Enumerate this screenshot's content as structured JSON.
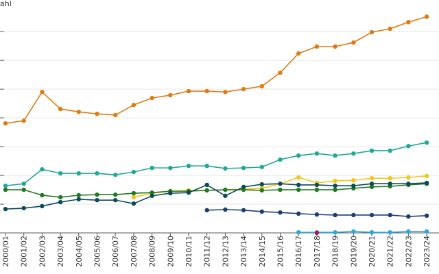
{
  "chart_data": {
    "type": "line",
    "title": "ahl",
    "categories": [
      "2000/01",
      "2001/02",
      "2002/03",
      "2003/04",
      "2004/05",
      "2005/06",
      "2006/07",
      "2007/08",
      "2008/09",
      "2009/10",
      "2010/11",
      "2011/12",
      "2012/13",
      "2013/14",
      "2014/15",
      "2015/16",
      "2016/17",
      "2017/18",
      "2018/19",
      "2019/20",
      "2020/21",
      "2021/22",
      "2022/23",
      "2023/24"
    ],
    "ylim": [
      0,
      8.1
    ],
    "yticks": [
      0,
      1,
      2,
      3,
      4,
      5,
      6,
      7
    ],
    "grid": true,
    "series": [
      {
        "color": "#e07b10",
        "values": [
          3.81,
          3.9,
          4.9,
          4.31,
          4.21,
          4.14,
          4.1,
          4.45,
          4.69,
          4.79,
          4.93,
          4.93,
          4.9,
          5.0,
          5.1,
          5.57,
          6.24,
          6.48,
          6.48,
          6.62,
          6.98,
          7.1,
          7.33,
          7.52
        ]
      },
      {
        "color": "#1fa89a",
        "values": [
          1.64,
          1.71,
          2.21,
          2.07,
          2.07,
          2.07,
          2.02,
          2.12,
          2.26,
          2.26,
          2.33,
          2.33,
          2.24,
          2.26,
          2.29,
          2.55,
          2.69,
          2.76,
          2.69,
          2.76,
          2.86,
          2.86,
          3.02,
          3.14
        ]
      },
      {
        "color": "#f5c518",
        "values": [
          null,
          null,
          null,
          null,
          null,
          null,
          null,
          1.24,
          1.38,
          1.45,
          1.48,
          1.48,
          1.5,
          1.52,
          1.55,
          1.71,
          1.93,
          1.74,
          1.81,
          1.83,
          1.9,
          1.9,
          1.93,
          1.98
        ]
      },
      {
        "color": "#1e7a1e",
        "values": [
          1.5,
          1.5,
          1.31,
          1.24,
          1.31,
          1.33,
          1.33,
          1.38,
          1.4,
          1.45,
          1.45,
          1.48,
          1.5,
          1.5,
          1.48,
          1.5,
          1.5,
          1.5,
          1.5,
          1.55,
          1.6,
          1.62,
          1.67,
          1.71
        ]
      },
      {
        "color": "#0b4a5c",
        "values": [
          0.83,
          0.86,
          0.93,
          1.07,
          1.17,
          1.14,
          1.14,
          1.02,
          1.29,
          1.38,
          1.4,
          1.67,
          1.29,
          1.6,
          1.69,
          1.71,
          1.67,
          1.67,
          1.64,
          1.64,
          1.71,
          1.71,
          1.71,
          1.74
        ]
      },
      {
        "color": "#1a3f73",
        "values": [
          null,
          null,
          null,
          null,
          null,
          null,
          null,
          null,
          null,
          null,
          null,
          0.79,
          0.81,
          0.79,
          0.74,
          0.71,
          0.67,
          0.64,
          0.62,
          0.62,
          0.62,
          0.62,
          0.57,
          0.6
        ]
      },
      {
        "color": "#2aa7e0",
        "values": [
          null,
          null,
          null,
          null,
          null,
          null,
          null,
          null,
          null,
          null,
          null,
          null,
          null,
          null,
          null,
          null,
          0.02,
          0.02,
          0.02,
          0.05,
          0.02,
          0.02,
          0.05,
          0.05
        ]
      },
      {
        "color": "#b0125a",
        "values": [
          null,
          null,
          null,
          null,
          null,
          null,
          null,
          null,
          null,
          null,
          null,
          null,
          null,
          null,
          null,
          null,
          null,
          0.0,
          null,
          null,
          null,
          null,
          null,
          null
        ]
      }
    ]
  }
}
